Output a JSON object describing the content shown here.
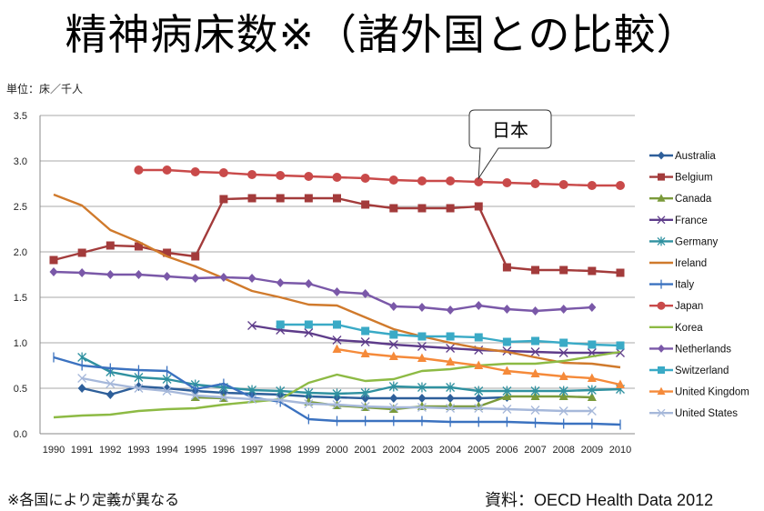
{
  "title": "精神病床数※（諸外国との比較）",
  "unit_label": "単位：床／千人",
  "footnote": "※各国により定義が異なる",
  "source": "資料：OECD Health Data 2012",
  "callout": {
    "text": "日本",
    "points_to_series": "Japan",
    "points_to_year": 2005
  },
  "chart_data": {
    "type": "line",
    "title": "精神病床数※（諸外国との比較）",
    "xlabel": "",
    "ylabel": "単位：床／千人",
    "x": [
      1990,
      1991,
      1992,
      1993,
      1994,
      1995,
      1996,
      1997,
      1998,
      1999,
      2000,
      2001,
      2002,
      2003,
      2004,
      2005,
      2006,
      2007,
      2008,
      2009,
      2010
    ],
    "ylim": [
      0,
      3.5
    ],
    "yticks": [
      "0.0",
      "0.5",
      "1.0",
      "1.5",
      "2.0",
      "2.5",
      "3.0",
      "3.5"
    ],
    "grid": "horizontal",
    "legend": "right",
    "series": [
      {
        "name": "Australia",
        "color": "#2E5F9A",
        "marker": "diamond",
        "values": [
          null,
          0.5,
          0.43,
          0.52,
          0.5,
          0.47,
          0.45,
          0.44,
          0.43,
          0.41,
          0.4,
          0.39,
          0.39,
          0.39,
          0.39,
          0.39,
          0.4,
          null,
          null,
          null,
          null
        ]
      },
      {
        "name": "Belgium",
        "color": "#A33B3B",
        "marker": "square",
        "values": [
          1.91,
          1.99,
          2.07,
          2.06,
          1.99,
          1.95,
          2.58,
          2.59,
          2.59,
          2.59,
          2.59,
          2.52,
          2.48,
          2.48,
          2.48,
          2.5,
          1.83,
          1.8,
          1.8,
          1.79,
          1.77
        ]
      },
      {
        "name": "Canada",
        "color": "#7A9A3A",
        "marker": "triangle",
        "values": [
          null,
          null,
          null,
          null,
          null,
          0.4,
          0.39,
          null,
          null,
          0.35,
          0.31,
          0.29,
          0.27,
          0.3,
          0.3,
          0.3,
          0.41,
          0.41,
          0.41,
          0.4,
          null
        ]
      },
      {
        "name": "France",
        "color": "#5E3C8A",
        "marker": "x",
        "values": [
          null,
          null,
          null,
          null,
          null,
          null,
          null,
          1.19,
          1.14,
          1.11,
          1.03,
          1.01,
          0.98,
          0.96,
          0.94,
          0.92,
          0.91,
          0.9,
          0.89,
          0.89,
          0.89
        ]
      },
      {
        "name": "Germany",
        "color": "#2F91A0",
        "marker": "asterisk",
        "values": [
          null,
          0.84,
          0.68,
          0.62,
          0.6,
          0.54,
          0.51,
          0.48,
          0.47,
          0.45,
          0.44,
          0.45,
          0.52,
          0.51,
          0.51,
          0.47,
          0.47,
          0.47,
          0.47,
          0.48,
          0.49
        ]
      },
      {
        "name": "Ireland",
        "color": "#D07A2C",
        "marker": "none",
        "values": [
          2.63,
          2.51,
          2.24,
          2.11,
          1.95,
          1.84,
          1.71,
          1.57,
          1.5,
          1.42,
          1.41,
          1.28,
          1.15,
          1.07,
          1.0,
          0.94,
          0.9,
          0.84,
          0.78,
          0.77,
          0.73
        ]
      },
      {
        "name": "Italy",
        "color": "#3B72C0",
        "marker": "plus",
        "values": [
          0.84,
          0.75,
          0.72,
          0.7,
          0.69,
          0.49,
          0.55,
          0.4,
          0.35,
          0.16,
          0.14,
          0.14,
          0.14,
          0.14,
          0.13,
          0.13,
          0.13,
          0.12,
          0.11,
          0.11,
          0.1
        ]
      },
      {
        "name": "Japan",
        "color": "#C94A4A",
        "marker": "circle",
        "values": [
          null,
          null,
          null,
          2.9,
          2.9,
          2.88,
          2.87,
          2.85,
          2.84,
          2.83,
          2.82,
          2.81,
          2.79,
          2.78,
          2.78,
          2.77,
          2.76,
          2.75,
          2.74,
          2.73,
          2.73
        ]
      },
      {
        "name": "Korea",
        "color": "#8DBA44",
        "marker": "none",
        "values": [
          0.18,
          0.2,
          0.21,
          0.25,
          0.27,
          0.28,
          0.32,
          0.35,
          0.38,
          0.56,
          0.65,
          0.58,
          0.6,
          0.69,
          0.71,
          0.75,
          0.77,
          0.77,
          0.8,
          0.85,
          0.9
        ]
      },
      {
        "name": "Netherlands",
        "color": "#7A58A8",
        "marker": "diamond",
        "values": [
          1.78,
          1.77,
          1.75,
          1.75,
          1.73,
          1.71,
          1.72,
          1.71,
          1.66,
          1.65,
          1.56,
          1.54,
          1.4,
          1.39,
          1.36,
          1.41,
          1.37,
          1.35,
          1.37,
          1.39,
          null
        ]
      },
      {
        "name": "Switzerland",
        "color": "#3AAAC6",
        "marker": "square",
        "values": [
          null,
          null,
          null,
          null,
          null,
          null,
          null,
          null,
          1.2,
          1.2,
          1.2,
          1.13,
          1.09,
          1.07,
          1.07,
          1.06,
          1.01,
          1.02,
          1.0,
          0.98,
          0.97
        ]
      },
      {
        "name": "United Kingdom",
        "color": "#F58A3A",
        "marker": "triangle",
        "values": [
          null,
          null,
          null,
          null,
          null,
          null,
          null,
          null,
          null,
          null,
          0.93,
          0.88,
          0.85,
          0.83,
          0.79,
          0.75,
          0.69,
          0.66,
          0.63,
          0.61,
          0.54
        ]
      },
      {
        "name": "United States",
        "color": "#A6B8DA",
        "marker": "x",
        "values": [
          null,
          0.61,
          0.55,
          0.5,
          0.47,
          0.42,
          0.4,
          0.38,
          0.37,
          0.33,
          0.32,
          0.3,
          0.29,
          0.29,
          0.28,
          0.28,
          0.27,
          0.26,
          0.25,
          0.25,
          null
        ]
      }
    ]
  }
}
